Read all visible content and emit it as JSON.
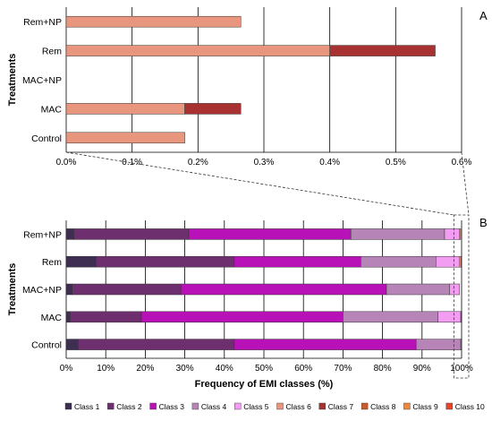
{
  "chart_data": [
    {
      "panel": "A",
      "type": "bar",
      "orientation": "horizontal",
      "stacked": true,
      "categories": [
        "Control",
        "MAC",
        "MAC+NP",
        "Rem",
        "Rem+NP"
      ],
      "series": [
        {
          "name": "Class 6",
          "color": "#E8967D",
          "values": [
            0.18,
            0.18,
            0,
            0.4,
            0.265
          ]
        },
        {
          "name": "Class 7",
          "color": "#A83232",
          "values": [
            0,
            0.085,
            0,
            0.16,
            0
          ]
        }
      ],
      "ylabel": "Treatments",
      "xlim": [
        0,
        0.6
      ],
      "xticks": [
        "0.0%",
        "0.1%",
        "0.2%",
        "0.3%",
        "0.4%",
        "0.5%",
        "0.6%"
      ],
      "grid": "vertical"
    },
    {
      "panel": "B",
      "type": "bar",
      "orientation": "horizontal",
      "stacked": true,
      "categories": [
        "Control",
        "MAC",
        "MAC+NP",
        "Rem",
        "Rem+NP"
      ],
      "series": [
        {
          "name": "Class 1",
          "color": "#3D2E52",
          "values": [
            3,
            1,
            1.5,
            7.5,
            2
          ]
        },
        {
          "name": "Class 2",
          "color": "#6E2F6E",
          "values": [
            39.5,
            18,
            27.5,
            35,
            29
          ]
        },
        {
          "name": "Class 3",
          "color": "#B711B7",
          "values": [
            46,
            51,
            52,
            32,
            41
          ]
        },
        {
          "name": "Class 4",
          "color": "#B784B7",
          "values": [
            11.3,
            24,
            16,
            19,
            23.7
          ]
        },
        {
          "name": "Class 5",
          "color": "#F29CF2",
          "values": [
            0,
            5.8,
            2.5,
            6,
            3.8
          ]
        },
        {
          "name": "Class 6",
          "color": "#E8967D",
          "values": [
            0.18,
            0.18,
            0,
            0.4,
            0.265
          ]
        },
        {
          "name": "Class 7",
          "color": "#A83232",
          "values": [
            0,
            0.085,
            0,
            0.16,
            0
          ]
        },
        {
          "name": "Class 8",
          "color": "#C85A2D",
          "values": [
            0,
            0,
            0,
            0,
            0
          ]
        },
        {
          "name": "Class 9",
          "color": "#F0883C",
          "values": [
            0,
            0,
            0,
            0,
            0
          ]
        },
        {
          "name": "Class 10",
          "color": "#E8442A",
          "values": [
            0,
            0,
            0,
            0,
            0
          ]
        }
      ],
      "ylabel": "Treatments",
      "xlabel": "Frequency of EMI classes (%)",
      "xlim": [
        0,
        100
      ],
      "xticks": [
        "0%",
        "10%",
        "20%",
        "30%",
        "40%",
        "50%",
        "60%",
        "70%",
        "80%",
        "90%",
        "100%"
      ],
      "grid": "vertical",
      "legend": "bottom"
    }
  ]
}
